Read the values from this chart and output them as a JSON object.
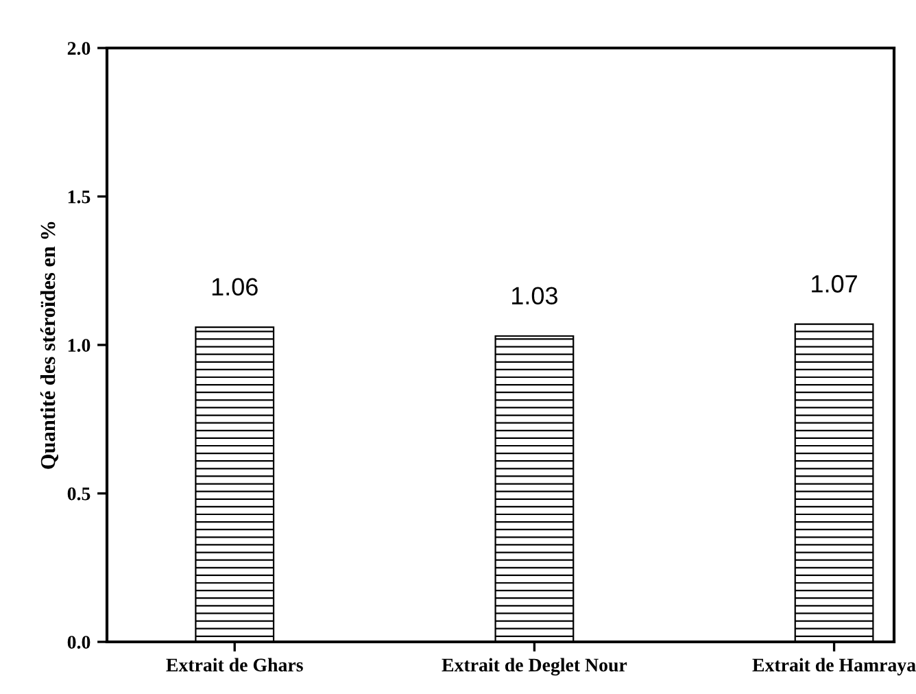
{
  "chart_data": {
    "type": "bar",
    "ylabel": "Quantité des stéroïdes en %",
    "categories": [
      "Extrait de Ghars",
      "Extrait de Deglet Nour",
      "Extrait de Hamraya"
    ],
    "values": [
      1.06,
      1.03,
      1.07
    ],
    "ylim": [
      0,
      2.0
    ],
    "yticks": [
      {
        "value": 0,
        "label": "0.0"
      },
      {
        "value": 0.5,
        "label": "0.5"
      },
      {
        "value": 1.0,
        "label": "1.0"
      },
      {
        "value": 1.5,
        "label": "1.5"
      },
      {
        "value": 2.0,
        "label": "2.0"
      }
    ],
    "data_labels": true,
    "grid": false,
    "legend": false
  }
}
